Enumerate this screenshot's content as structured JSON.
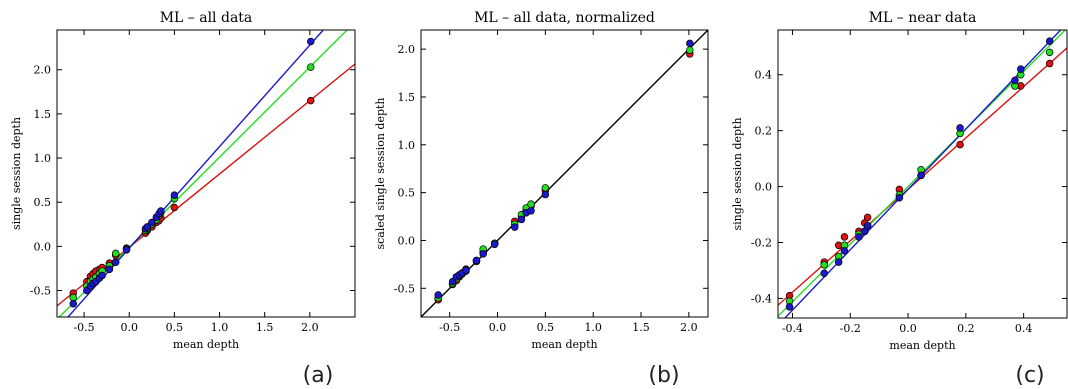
{
  "chart_data": [
    {
      "type": "scatter",
      "title": "ML – all data",
      "panel_label": "(a)",
      "xlabel": "mean depth",
      "ylabel": "single session depth",
      "xlim": [
        -0.8,
        2.5
      ],
      "ylim": [
        -0.8,
        2.45
      ],
      "xticks": [
        "-0.5",
        "0.0",
        "0.5",
        "1.0",
        "1.5",
        "2.0"
      ],
      "yticks": [
        "-0.5",
        "0.0",
        "0.5",
        "1.0",
        "1.5",
        "2.0"
      ],
      "grid": false,
      "colors": {
        "red": "#dd1111",
        "green": "#22dd22",
        "blue": "#1a1acc"
      },
      "series": [
        {
          "color": "red",
          "fit": {
            "slope": 0.83,
            "intercept": -0.01
          },
          "points": [
            [
              -0.62,
              -0.53
            ],
            [
              -0.47,
              -0.4
            ],
            [
              -0.43,
              -0.34
            ],
            [
              -0.4,
              -0.31
            ],
            [
              -0.37,
              -0.28
            ],
            [
              -0.33,
              -0.26
            ],
            [
              -0.3,
              -0.24
            ],
            [
              -0.22,
              -0.19
            ],
            [
              -0.15,
              -0.1
            ],
            [
              -0.03,
              -0.02
            ],
            [
              0.18,
              0.15
            ],
            [
              0.2,
              0.18
            ],
            [
              0.25,
              0.22
            ],
            [
              0.3,
              0.27
            ],
            [
              0.33,
              0.29
            ],
            [
              0.35,
              0.32
            ],
            [
              0.5,
              0.44
            ],
            [
              2.01,
              1.65
            ]
          ]
        },
        {
          "color": "green",
          "fit": {
            "slope": 1.02,
            "intercept": -0.01
          },
          "points": [
            [
              -0.62,
              -0.58
            ],
            [
              -0.47,
              -0.45
            ],
            [
              -0.43,
              -0.4
            ],
            [
              -0.4,
              -0.37
            ],
            [
              -0.37,
              -0.35
            ],
            [
              -0.33,
              -0.31
            ],
            [
              -0.3,
              -0.28
            ],
            [
              -0.22,
              -0.22
            ],
            [
              -0.15,
              -0.08
            ],
            [
              -0.03,
              -0.03
            ],
            [
              0.18,
              0.18
            ],
            [
              0.2,
              0.2
            ],
            [
              0.25,
              0.25
            ],
            [
              0.3,
              0.3
            ],
            [
              0.33,
              0.35
            ],
            [
              0.35,
              0.38
            ],
            [
              0.5,
              0.54
            ],
            [
              2.01,
              2.03
            ]
          ]
        },
        {
          "color": "blue",
          "fit": {
            "slope": 1.15,
            "intercept": -0.02
          },
          "points": [
            [
              -0.62,
              -0.65
            ],
            [
              -0.47,
              -0.5
            ],
            [
              -0.43,
              -0.45
            ],
            [
              -0.4,
              -0.42
            ],
            [
              -0.37,
              -0.4
            ],
            [
              -0.33,
              -0.36
            ],
            [
              -0.3,
              -0.33
            ],
            [
              -0.22,
              -0.26
            ],
            [
              -0.15,
              -0.18
            ],
            [
              -0.03,
              -0.04
            ],
            [
              0.18,
              0.2
            ],
            [
              0.2,
              0.22
            ],
            [
              0.25,
              0.27
            ],
            [
              0.3,
              0.33
            ],
            [
              0.33,
              0.37
            ],
            [
              0.35,
              0.4
            ],
            [
              0.5,
              0.58
            ],
            [
              2.01,
              2.32
            ]
          ]
        }
      ]
    },
    {
      "type": "scatter",
      "title": "ML – all data, normalized",
      "panel_label": "(b)",
      "xlabel": "mean depth",
      "ylabel": "scaled single session depth",
      "xlim": [
        -0.8,
        2.2
      ],
      "ylim": [
        -0.8,
        2.2
      ],
      "xticks": [
        "-0.5",
        "0.0",
        "0.5",
        "1.0",
        "1.5",
        "2.0"
      ],
      "yticks": [
        "-0.5",
        "0.0",
        "0.5",
        "1.0",
        "1.5",
        "2.0"
      ],
      "grid": false,
      "colors": {
        "red": "#dd1111",
        "green": "#22dd22",
        "blue": "#1a1acc",
        "fit": "#000000"
      },
      "series": [
        {
          "color": "fit",
          "fit": {
            "slope": 1.0,
            "intercept": 0.0
          },
          "points": []
        },
        {
          "color": "red",
          "points": [
            [
              -0.62,
              -0.62
            ],
            [
              -0.47,
              -0.46
            ],
            [
              -0.43,
              -0.42
            ],
            [
              -0.4,
              -0.38
            ],
            [
              -0.37,
              -0.34
            ],
            [
              -0.33,
              -0.3
            ],
            [
              -0.22,
              -0.21
            ],
            [
              -0.15,
              -0.12
            ],
            [
              -0.03,
              -0.03
            ],
            [
              0.18,
              0.2
            ],
            [
              0.25,
              0.25
            ],
            [
              0.3,
              0.32
            ],
            [
              0.35,
              0.36
            ],
            [
              0.5,
              0.52
            ],
            [
              2.01,
              1.95
            ]
          ]
        },
        {
          "color": "green",
          "points": [
            [
              -0.62,
              -0.6
            ],
            [
              -0.47,
              -0.45
            ],
            [
              -0.43,
              -0.4
            ],
            [
              -0.4,
              -0.37
            ],
            [
              -0.37,
              -0.35
            ],
            [
              -0.33,
              -0.32
            ],
            [
              -0.22,
              -0.22
            ],
            [
              -0.15,
              -0.09
            ],
            [
              -0.03,
              -0.03
            ],
            [
              0.18,
              0.17
            ],
            [
              0.25,
              0.27
            ],
            [
              0.3,
              0.34
            ],
            [
              0.35,
              0.38
            ],
            [
              0.5,
              0.55
            ],
            [
              2.01,
              1.99
            ]
          ]
        },
        {
          "color": "blue",
          "points": [
            [
              -0.62,
              -0.57
            ],
            [
              -0.47,
              -0.43
            ],
            [
              -0.43,
              -0.38
            ],
            [
              -0.4,
              -0.36
            ],
            [
              -0.37,
              -0.34
            ],
            [
              -0.33,
              -0.31
            ],
            [
              -0.22,
              -0.21
            ],
            [
              -0.15,
              -0.14
            ],
            [
              -0.03,
              -0.04
            ],
            [
              0.18,
              0.14
            ],
            [
              0.25,
              0.22
            ],
            [
              0.3,
              0.29
            ],
            [
              0.35,
              0.31
            ],
            [
              0.5,
              0.48
            ],
            [
              2.01,
              2.06
            ]
          ]
        }
      ]
    },
    {
      "type": "scatter",
      "title": "ML – near data",
      "panel_label": "(c)",
      "xlabel": "mean depth",
      "ylabel": "single session depth",
      "xlim": [
        -0.45,
        0.55
      ],
      "ylim": [
        -0.47,
        0.56
      ],
      "xticks": [
        "-0.4",
        "-0.2",
        "0.0",
        "0.2",
        "0.4"
      ],
      "yticks": [
        "-0.4",
        "-0.2",
        "0.0",
        "0.2",
        "0.4"
      ],
      "grid": false,
      "colors": {
        "red": "#dd1111",
        "green": "#22dd22",
        "blue": "#1a1acc"
      },
      "series": [
        {
          "color": "red",
          "fit": {
            "slope": 0.92,
            "intercept": -0.01
          },
          "points": [
            [
              -0.41,
              -0.39
            ],
            [
              -0.29,
              -0.27
            ],
            [
              -0.24,
              -0.21
            ],
            [
              -0.22,
              -0.18
            ],
            [
              -0.17,
              -0.16
            ],
            [
              -0.15,
              -0.13
            ],
            [
              -0.14,
              -0.11
            ],
            [
              -0.03,
              -0.01
            ],
            [
              0.045,
              0.04
            ],
            [
              0.18,
              0.15
            ],
            [
              0.37,
              0.36
            ],
            [
              0.39,
              0.36
            ],
            [
              0.49,
              0.44
            ]
          ]
        },
        {
          "color": "green",
          "fit": {
            "slope": 1.03,
            "intercept": 0.0
          },
          "points": [
            [
              -0.41,
              -0.41
            ],
            [
              -0.29,
              -0.28
            ],
            [
              -0.24,
              -0.25
            ],
            [
              -0.22,
              -0.21
            ],
            [
              -0.17,
              -0.17
            ],
            [
              -0.15,
              -0.16
            ],
            [
              -0.14,
              -0.14
            ],
            [
              -0.03,
              -0.03
            ],
            [
              0.045,
              0.06
            ],
            [
              0.18,
              0.19
            ],
            [
              0.37,
              0.36
            ],
            [
              0.39,
              0.4
            ],
            [
              0.49,
              0.48
            ]
          ]
        },
        {
          "color": "blue",
          "fit": {
            "slope": 1.08,
            "intercept": -0.01
          },
          "points": [
            [
              -0.41,
              -0.43
            ],
            [
              -0.29,
              -0.31
            ],
            [
              -0.24,
              -0.27
            ],
            [
              -0.22,
              -0.23
            ],
            [
              -0.17,
              -0.18
            ],
            [
              -0.15,
              -0.16
            ],
            [
              -0.14,
              -0.14
            ],
            [
              -0.03,
              -0.04
            ],
            [
              0.045,
              0.04
            ],
            [
              0.18,
              0.21
            ],
            [
              0.37,
              0.38
            ],
            [
              0.39,
              0.42
            ],
            [
              0.49,
              0.52
            ]
          ]
        }
      ]
    }
  ]
}
